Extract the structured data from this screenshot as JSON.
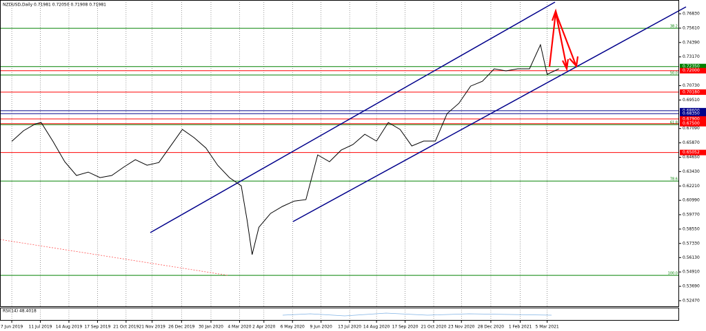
{
  "chart_data": {
    "type": "line",
    "title": "NZDUSD,Daily  0.71981 0.72050 0.71908 0.71981",
    "color": "#000000",
    "x": [
      "2019-06-07",
      "2019-06-21",
      "2019-07-05",
      "2019-07-12",
      "2019-07-26",
      "2019-08-09",
      "2019-08-23",
      "2019-09-06",
      "2019-09-20",
      "2019-10-04",
      "2019-10-18",
      "2019-11-01",
      "2019-11-15",
      "2019-11-29",
      "2019-12-13",
      "2019-12-27",
      "2020-01-10",
      "2020-01-24",
      "2020-02-07",
      "2020-02-21",
      "2020-03-06",
      "2020-03-13",
      "2020-03-19",
      "2020-03-27",
      "2020-04-10",
      "2020-04-24",
      "2020-05-08",
      "2020-05-22",
      "2020-06-05",
      "2020-06-19",
      "2020-07-03",
      "2020-07-17",
      "2020-07-31",
      "2020-08-14",
      "2020-08-28",
      "2020-09-11",
      "2020-09-25",
      "2020-10-09",
      "2020-10-23",
      "2020-11-06",
      "2020-11-20",
      "2020-12-04",
      "2020-12-18",
      "2021-01-01",
      "2021-01-15",
      "2021-01-29",
      "2021-02-12",
      "2021-02-25",
      "2021-03-05",
      "2021-03-19"
    ],
    "values": [
      0.66,
      0.669,
      0.6748,
      0.676,
      0.66,
      0.6427,
      0.631,
      0.6339,
      0.6292,
      0.631,
      0.638,
      0.6444,
      0.6397,
      0.642,
      0.6561,
      0.6701,
      0.6631,
      0.6543,
      0.6397,
      0.6292,
      0.6222,
      0.593,
      0.5638,
      0.5871,
      0.5988,
      0.6047,
      0.6093,
      0.6105,
      0.6485,
      0.6427,
      0.6526,
      0.6573,
      0.666,
      0.6602,
      0.676,
      0.6701,
      0.6561,
      0.6602,
      0.6602,
      0.6836,
      0.6923,
      0.7069,
      0.711,
      0.7216,
      0.7198,
      0.7216,
      0.7216,
      0.742,
      0.7169,
      0.7216
    ],
    "ylim": [
      0.52,
      0.78
    ],
    "yticks": [
      {
        "value": 0.7683,
        "label": "0.76830"
      },
      {
        "value": 0.7561,
        "label": "0.75610"
      },
      {
        "value": 0.7439,
        "label": "0.74390"
      },
      {
        "value": 0.7317,
        "label": "0.73170"
      },
      {
        "value": 0.7073,
        "label": "0.70730"
      },
      {
        "value": 0.6951,
        "label": "0.69510"
      },
      {
        "value": 0.6709,
        "label": "0.67090"
      },
      {
        "value": 0.6587,
        "label": "0.65870"
      },
      {
        "value": 0.6465,
        "label": "0.64650"
      },
      {
        "value": 0.6343,
        "label": "0.63430"
      },
      {
        "value": 0.6221,
        "label": "0.62210"
      },
      {
        "value": 0.6099,
        "label": "0.60990"
      },
      {
        "value": 0.5977,
        "label": "0.59770"
      },
      {
        "value": 0.5855,
        "label": "0.58550"
      },
      {
        "value": 0.5733,
        "label": "0.57330"
      },
      {
        "value": 0.5613,
        "label": "0.56130"
      },
      {
        "value": 0.5491,
        "label": "0.54910"
      },
      {
        "value": 0.5369,
        "label": "0.53690"
      },
      {
        "value": 0.5247,
        "label": "0.52470"
      }
    ],
    "xlim": [
      "2019-05-24",
      "2021-08-09"
    ],
    "xticks": [
      {
        "value": "2019-06-07",
        "label": "7 Jun 2019"
      },
      {
        "value": "2019-07-11",
        "label": "11 Jul 2019"
      },
      {
        "value": "2019-08-14",
        "label": "14 Aug 2019"
      },
      {
        "value": "2019-09-17",
        "label": "17 Sep 2019"
      },
      {
        "value": "2019-10-21",
        "label": "21 Oct 2019"
      },
      {
        "value": "2019-11-21",
        "label": "21 Nov 2019"
      },
      {
        "value": "2019-12-26",
        "label": "26 Dec 2019"
      },
      {
        "value": "2020-01-30",
        "label": "30 Jan 2020"
      },
      {
        "value": "2020-03-04",
        "label": "4 Mar 2020"
      },
      {
        "value": "2020-04-02",
        "label": "2 Apr 2020"
      },
      {
        "value": "2020-05-06",
        "label": "6 May 2020"
      },
      {
        "value": "2020-06-09",
        "label": "9 Jun 2020"
      },
      {
        "value": "2020-07-13",
        "label": "13 Jul 2020"
      },
      {
        "value": "2020-08-14",
        "label": "14 Aug 2020"
      },
      {
        "value": "2020-09-17",
        "label": "17 Sep 2020"
      },
      {
        "value": "2020-10-21",
        "label": "21 Oct 2020"
      },
      {
        "value": "2020-11-23",
        "label": "23 Nov 2020"
      },
      {
        "value": "2020-12-28",
        "label": "28 Dec 2020"
      },
      {
        "value": "2021-02-01",
        "label": "1 Feb 2021"
      },
      {
        "value": "2021-03-05",
        "label": "5 Mar 2021"
      }
    ],
    "price_levels": [
      {
        "value": 0.7235,
        "label": "0.72350",
        "color": "#008000"
      },
      {
        "value": 0.72,
        "label": "0.72000",
        "color": "#ff0000"
      },
      {
        "value": 0.7018,
        "label": "0.70180",
        "color": "#ff0000"
      },
      {
        "value": 0.686,
        "label": "0.68600",
        "color": "#00008b"
      },
      {
        "value": 0.6835,
        "label": "0.68350",
        "color": "#00008b"
      },
      {
        "value": 0.679,
        "label": "0.67900",
        "color": "#ff0000"
      },
      {
        "value": 0.675,
        "label": "0.67500",
        "color": "#ff0000"
      },
      {
        "value": 0.65052,
        "label": "0.65052",
        "color": "#ff0000"
      }
    ],
    "fib_levels": [
      {
        "value": 0.756,
        "label": "38.2"
      },
      {
        "value": 0.7163,
        "label": "50.0"
      },
      {
        "value": 0.6742,
        "label": "61.8"
      },
      {
        "value": 0.6263,
        "label": "78.6"
      },
      {
        "value": 0.5462,
        "label": "100.0"
      }
    ],
    "fib_color": "#008000",
    "indicator_label": "RSI(14) 48.4018"
  }
}
